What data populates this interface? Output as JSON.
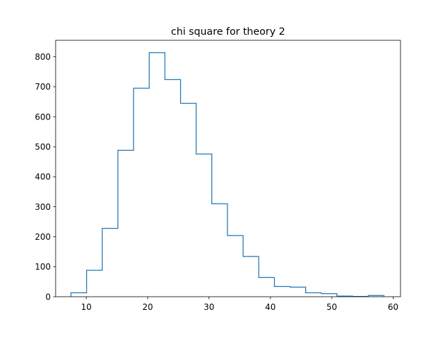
{
  "chart_data": {
    "type": "histogram",
    "title": "chi square for theory 2",
    "xlabel": "",
    "ylabel": "",
    "xlim": [
      5.0,
      61.2
    ],
    "ylim": [
      0,
      855
    ],
    "x_ticks": [
      10,
      20,
      30,
      40,
      50,
      60
    ],
    "y_ticks": [
      0,
      100,
      200,
      300,
      400,
      500,
      600,
      700,
      800
    ],
    "bin_edges": [
      7.5,
      10.05,
      12.6,
      15.15,
      17.7,
      20.25,
      22.8,
      25.35,
      27.9,
      30.45,
      33.0,
      35.55,
      38.1,
      40.65,
      43.2,
      45.75,
      48.3,
      50.85,
      53.4,
      55.95,
      58.5
    ],
    "counts": [
      13,
      88,
      228,
      488,
      695,
      814,
      724,
      645,
      476,
      310,
      204,
      134,
      64,
      34,
      32,
      13,
      10,
      2,
      1,
      4
    ],
    "histtype": "step",
    "color": "#1f77b4",
    "grid": false
  }
}
